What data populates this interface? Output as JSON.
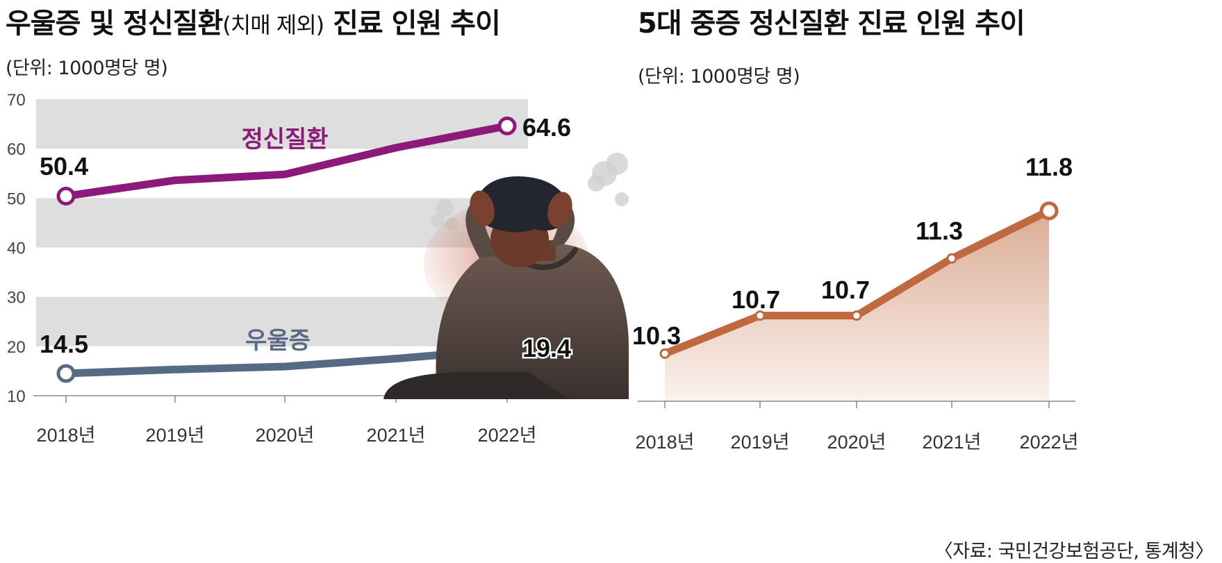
{
  "left": {
    "title_main": "우울증 및 정신질환",
    "title_paren": "(치매 제외)",
    "title_tail": "진료 인원 추이",
    "unit": "(단위: 1000명당 명)"
  },
  "right": {
    "title": "5대 중증 정신질환 진료 인원 추이",
    "unit": "(단위: 1000명당 명)"
  },
  "source": "〈자료: 국민건강보험공단, 통계청〉",
  "colors": {
    "mental": "#8b1a7b",
    "depression": "#566a84",
    "severe": "#c0683e",
    "band": "#dedede"
  },
  "illustration": "stressed-person-holding-head",
  "chart_data": [
    {
      "type": "line",
      "categories": [
        "2018년",
        "2019년",
        "2020년",
        "2021년",
        "2022년"
      ],
      "ylim": [
        10,
        70
      ],
      "yticks": [
        10,
        20,
        30,
        40,
        50,
        60,
        70
      ],
      "series": [
        {
          "name": "정신질환",
          "values": [
            50.4,
            53.6,
            54.8,
            60.2,
            64.6
          ],
          "labels": [
            "50.4",
            "",
            "",
            "",
            "64.6"
          ]
        },
        {
          "name": "우울증",
          "values": [
            14.5,
            15.3,
            15.9,
            17.5,
            19.4
          ],
          "labels": [
            "14.5",
            "",
            "",
            "",
            "19.4"
          ]
        }
      ]
    },
    {
      "type": "area",
      "categories": [
        "2018년",
        "2019년",
        "2020년",
        "2021년",
        "2022년"
      ],
      "ylim": [
        9.8,
        11.9
      ],
      "series": [
        {
          "values": [
            10.3,
            10.7,
            10.7,
            11.3,
            11.8
          ],
          "labels": [
            "10.3",
            "10.7",
            "10.7",
            "11.3",
            "11.8"
          ]
        }
      ]
    }
  ]
}
